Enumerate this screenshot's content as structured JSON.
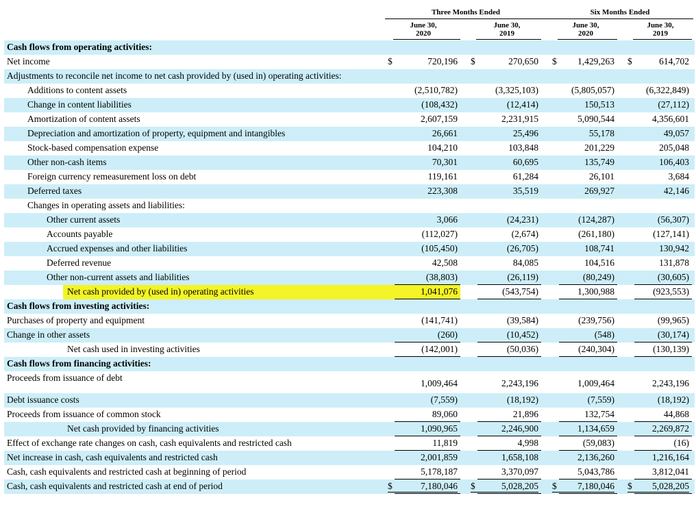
{
  "header": {
    "three_months": "Three Months Ended",
    "six_months": "Six Months Ended",
    "col_dates": [
      [
        "June 30,",
        "2020"
      ],
      [
        "June 30,",
        "2019"
      ],
      [
        "June 30,",
        "2020"
      ],
      [
        "June 30,",
        "2019"
      ]
    ]
  },
  "rows": [
    {
      "label": "Cash flows from operating activities:",
      "bold": true,
      "indent": 0,
      "values": [
        "",
        "",
        "",
        ""
      ]
    },
    {
      "label": "Net income",
      "indent": 0,
      "dollar": true,
      "values": [
        "720,196",
        "270,650",
        "1,429,263",
        "614,702"
      ]
    },
    {
      "label": "Adjustments to reconcile net income to net cash provided by (used in) operating activities:",
      "indent": 0,
      "values": [
        "",
        "",
        "",
        ""
      ]
    },
    {
      "label": "Additions to content assets",
      "indent": 1,
      "values": [
        "(2,510,782)",
        "(3,325,103)",
        "(5,805,057)",
        "(6,322,849)"
      ]
    },
    {
      "label": "Change in content liabilities",
      "indent": 1,
      "values": [
        "(108,432)",
        "(12,414)",
        "150,513",
        "(27,112)"
      ]
    },
    {
      "label": "Amortization of content assets",
      "indent": 1,
      "values": [
        "2,607,159",
        "2,231,915",
        "5,090,544",
        "4,356,601"
      ]
    },
    {
      "label": "Depreciation and amortization of property, equipment and intangibles",
      "indent": 1,
      "values": [
        "26,661",
        "25,496",
        "55,178",
        "49,057"
      ]
    },
    {
      "label": "Stock-based compensation expense",
      "indent": 1,
      "values": [
        "104,210",
        "103,848",
        "201,229",
        "205,048"
      ]
    },
    {
      "label": "Other non-cash items",
      "indent": 1,
      "values": [
        "70,301",
        "60,695",
        "135,749",
        "106,403"
      ]
    },
    {
      "label": "Foreign currency remeasurement loss on debt",
      "indent": 1,
      "values": [
        "119,161",
        "61,284",
        "26,101",
        "3,684"
      ]
    },
    {
      "label": "Deferred taxes",
      "indent": 1,
      "values": [
        "223,308",
        "35,519",
        "269,927",
        "42,146"
      ]
    },
    {
      "label": "Changes in operating assets and liabilities:",
      "indent": 1,
      "values": [
        "",
        "",
        "",
        ""
      ]
    },
    {
      "label": "Other current assets",
      "indent": 2,
      "values": [
        "3,066",
        "(24,231)",
        "(124,287)",
        "(56,307)"
      ]
    },
    {
      "label": "Accounts payable",
      "indent": 2,
      "values": [
        "(112,027)",
        "(2,674)",
        "(261,180)",
        "(127,141)"
      ]
    },
    {
      "label": "Accrued expenses and other liabilities",
      "indent": 2,
      "values": [
        "(105,450)",
        "(26,705)",
        "108,741",
        "130,942"
      ]
    },
    {
      "label": "Deferred revenue",
      "indent": 2,
      "values": [
        "42,508",
        "84,085",
        "104,516",
        "131,878"
      ]
    },
    {
      "label": "Other non-current assets and liabilities",
      "indent": 2,
      "underline": true,
      "values": [
        "(38,803)",
        "(26,119)",
        "(80,249)",
        "(30,605)"
      ]
    },
    {
      "label": "Net cash provided by (used in) operating activities",
      "indent": 3,
      "highlight": true,
      "underline": true,
      "values": [
        "1,041,076",
        "(543,754)",
        "1,300,988",
        "(923,553)"
      ]
    },
    {
      "label": "Cash flows from investing activities:",
      "bold": true,
      "indent": 0,
      "values": [
        "",
        "",
        "",
        ""
      ]
    },
    {
      "label": "Purchases of property and equipment",
      "indent": 0,
      "values": [
        "(141,741)",
        "(39,584)",
        "(239,756)",
        "(99,965)"
      ]
    },
    {
      "label": "Change in other assets",
      "indent": 0,
      "underline": true,
      "values": [
        "(260)",
        "(10,452)",
        "(548)",
        "(30,174)"
      ]
    },
    {
      "label": "Net cash used in investing activities",
      "indent": 3,
      "underline": true,
      "values": [
        "(142,001)",
        "(50,036)",
        "(240,304)",
        "(130,139)"
      ]
    },
    {
      "label": "Cash flows from financing activities:",
      "bold": true,
      "indent": 0,
      "values": [
        "",
        "",
        "",
        ""
      ]
    },
    {
      "label": "Proceeds from issuance of debt",
      "indent": 0,
      "tall": true,
      "values": [
        "1,009,464",
        "2,243,196",
        "1,009,464",
        "2,243,196"
      ]
    },
    {
      "label": "Debt issuance costs",
      "indent": 0,
      "values": [
        "(7,559)",
        "(18,192)",
        "(7,559)",
        "(18,192)"
      ]
    },
    {
      "label": "Proceeds from issuance of common stock",
      "indent": 0,
      "underline": true,
      "values": [
        "89,060",
        "21,896",
        "132,754",
        "44,868"
      ]
    },
    {
      "label": "Net cash provided by financing activities",
      "indent": 3,
      "underline": true,
      "values": [
        "1,090,965",
        "2,246,900",
        "1,134,659",
        "2,269,872"
      ]
    },
    {
      "label": "Effect of exchange rate changes on cash, cash equivalents and restricted cash",
      "indent": 0,
      "underline": true,
      "values": [
        "11,819",
        "4,998",
        "(59,083)",
        "(16)"
      ]
    },
    {
      "label": "Net increase in cash, cash equivalents and restricted cash",
      "indent": 0,
      "values": [
        "2,001,859",
        "1,658,108",
        "2,136,260",
        "1,216,164"
      ]
    },
    {
      "label": "Cash, cash equivalents and restricted cash at beginning of period",
      "indent": 0,
      "underline": true,
      "values": [
        "5,178,187",
        "3,370,097",
        "5,043,786",
        "3,812,041"
      ]
    },
    {
      "label": "Cash, cash equivalents and restricted cash at end of period",
      "indent": 0,
      "dollar": true,
      "double": true,
      "values": [
        "7,180,046",
        "5,028,205",
        "7,180,046",
        "5,028,205"
      ]
    }
  ],
  "currency_symbol": "$",
  "colors": {
    "shade": "#cdeef8",
    "highlight": "#f2f200"
  }
}
